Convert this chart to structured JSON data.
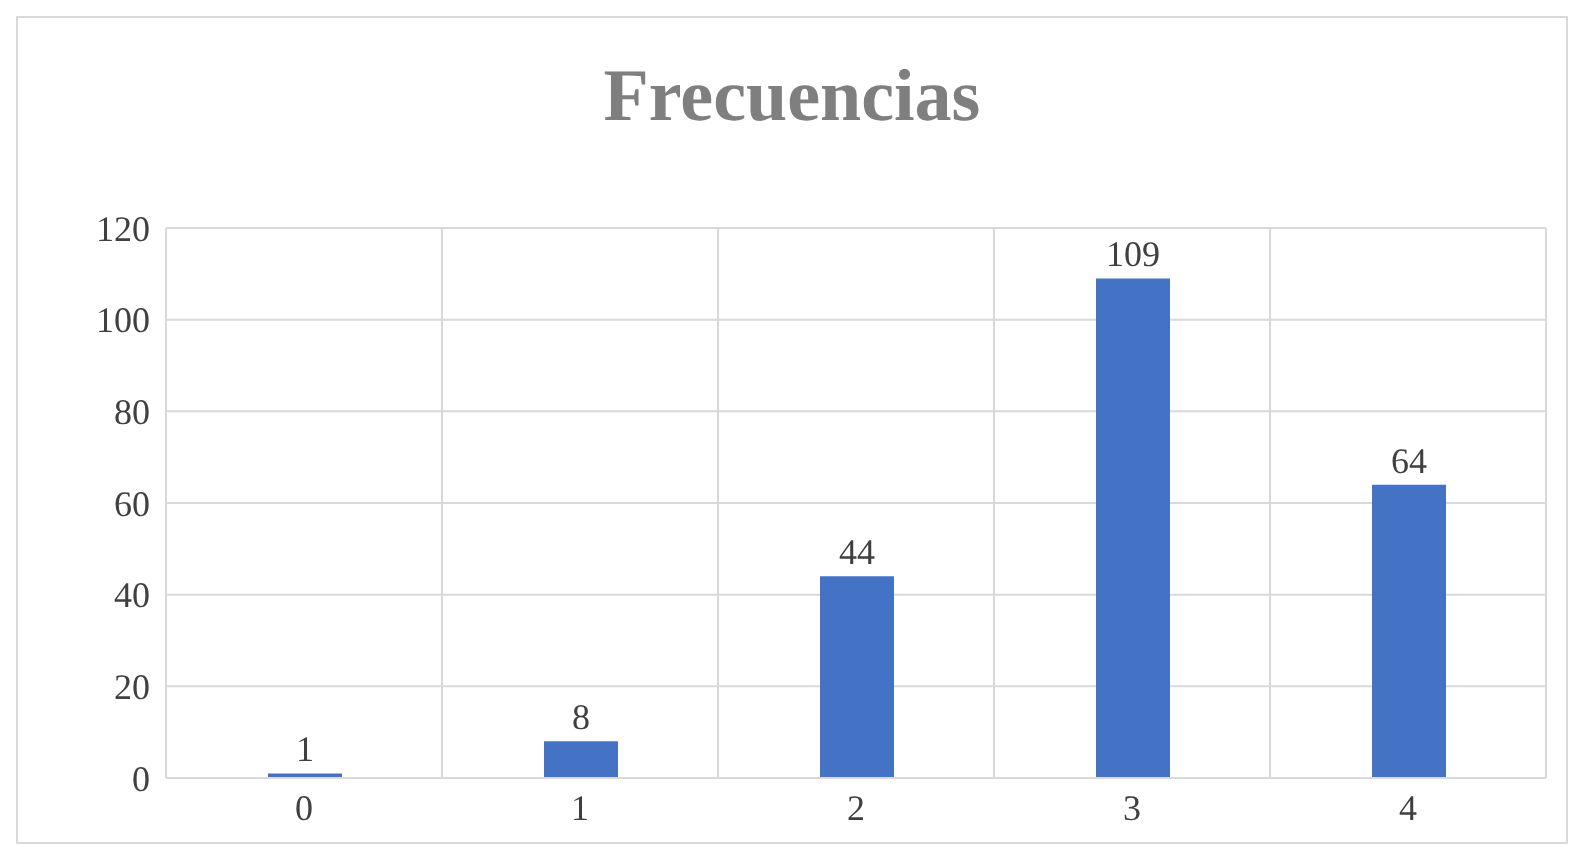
{
  "chart_data": {
    "type": "bar",
    "title": "Frecuencias",
    "categories": [
      "0",
      "1",
      "2",
      "3",
      "4"
    ],
    "values": [
      1,
      8,
      44,
      109,
      64
    ],
    "color": "#4472c4",
    "ylim": [
      0,
      120
    ],
    "yticks": [
      0,
      20,
      40,
      60,
      80,
      100,
      120
    ],
    "grid": true,
    "data_labels": true
  }
}
